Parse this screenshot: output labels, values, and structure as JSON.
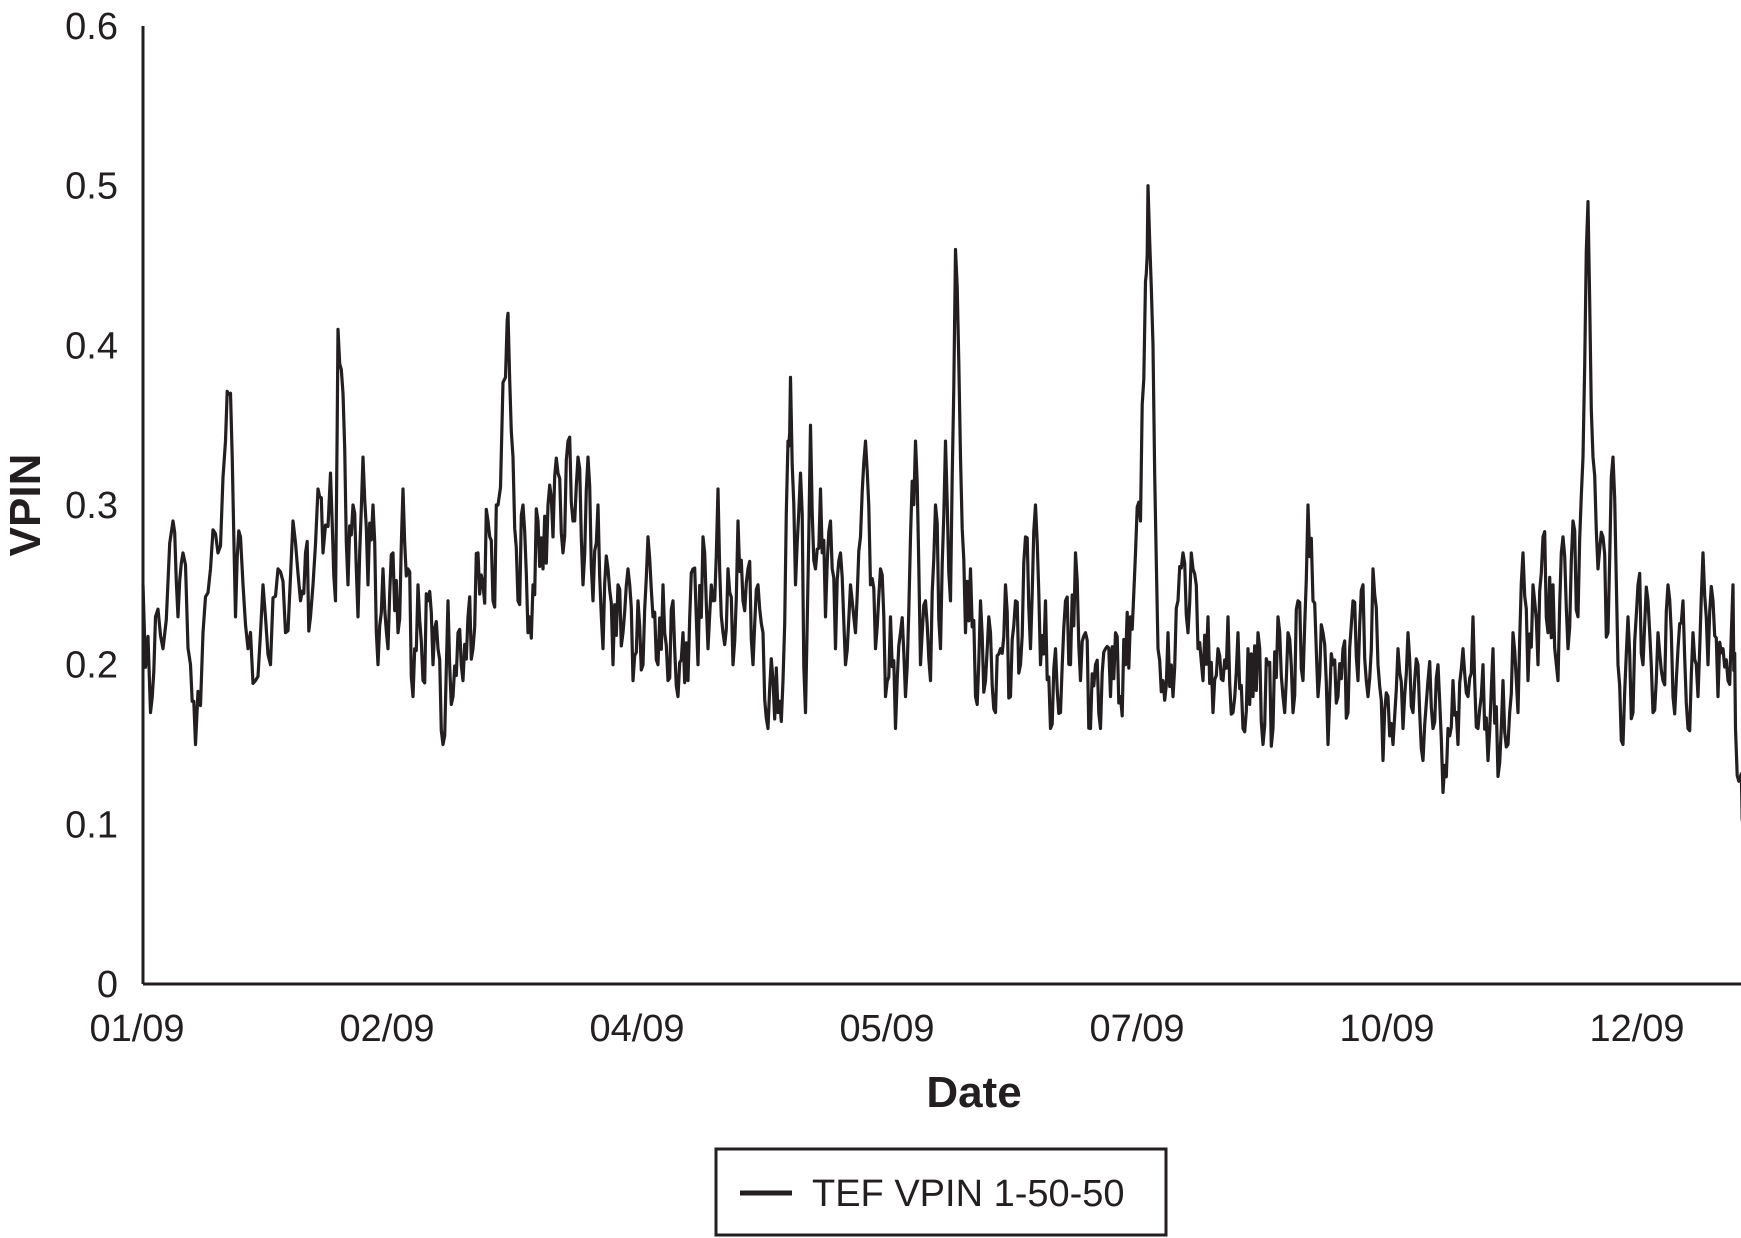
{
  "chart_data": {
    "type": "line",
    "title": "",
    "xlabel": "Date",
    "ylabel": "VPIN",
    "ylim": [
      0,
      0.6
    ],
    "yticks": [
      "0",
      "0.1",
      "0.2",
      "0.3",
      "0.4",
      "0.5",
      "0.6"
    ],
    "xticks": [
      "01/09",
      "02/09",
      "04/09",
      "05/09",
      "07/09",
      "10/09",
      "12/09"
    ],
    "grid": false,
    "legend_position": "bottom-center",
    "line_color": "#231f20",
    "series": [
      {
        "name": "TEF VPIN 1-50-50",
        "x_tick_positions": [
          0,
          1,
          2,
          3,
          4,
          5,
          6
        ],
        "x_end": 6.4,
        "peaks": [
          [
            0.0,
            0.25
          ],
          [
            0.03,
            0.17
          ],
          [
            0.05,
            0.23
          ],
          [
            0.08,
            0.21
          ],
          [
            0.12,
            0.29
          ],
          [
            0.14,
            0.23
          ],
          [
            0.16,
            0.27
          ],
          [
            0.19,
            0.2
          ],
          [
            0.21,
            0.15
          ],
          [
            0.24,
            0.22
          ],
          [
            0.27,
            0.26
          ],
          [
            0.3,
            0.27
          ],
          [
            0.33,
            0.34
          ],
          [
            0.35,
            0.37
          ],
          [
            0.37,
            0.23
          ],
          [
            0.39,
            0.28
          ],
          [
            0.42,
            0.21
          ],
          [
            0.45,
            0.19
          ],
          [
            0.48,
            0.25
          ],
          [
            0.51,
            0.2
          ],
          [
            0.54,
            0.26
          ],
          [
            0.57,
            0.22
          ],
          [
            0.6,
            0.29
          ],
          [
            0.63,
            0.24
          ],
          [
            0.65,
            0.27
          ],
          [
            0.67,
            0.23
          ],
          [
            0.7,
            0.31
          ],
          [
            0.72,
            0.27
          ],
          [
            0.75,
            0.32
          ],
          [
            0.77,
            0.24
          ],
          [
            0.78,
            0.41
          ],
          [
            0.8,
            0.37
          ],
          [
            0.82,
            0.25
          ],
          [
            0.84,
            0.3
          ],
          [
            0.86,
            0.23
          ],
          [
            0.88,
            0.33
          ],
          [
            0.9,
            0.25
          ],
          [
            0.92,
            0.3
          ],
          [
            0.94,
            0.2
          ],
          [
            0.96,
            0.26
          ],
          [
            0.98,
            0.21
          ],
          [
            1.0,
            0.27
          ],
          [
            1.02,
            0.22
          ],
          [
            1.04,
            0.31
          ],
          [
            1.06,
            0.26
          ],
          [
            1.08,
            0.18
          ],
          [
            1.1,
            0.25
          ],
          [
            1.12,
            0.19
          ],
          [
            1.14,
            0.24
          ],
          [
            1.16,
            0.2
          ],
          [
            1.18,
            0.21
          ],
          [
            1.2,
            0.15
          ],
          [
            1.22,
            0.24
          ],
          [
            1.24,
            0.18
          ],
          [
            1.26,
            0.22
          ],
          [
            1.28,
            0.19
          ],
          [
            1.3,
            0.23
          ],
          [
            1.32,
            0.21
          ],
          [
            1.34,
            0.27
          ],
          [
            1.36,
            0.25
          ],
          [
            1.38,
            0.29
          ],
          [
            1.4,
            0.24
          ],
          [
            1.42,
            0.3
          ],
          [
            1.45,
            0.38
          ],
          [
            1.46,
            0.42
          ],
          [
            1.48,
            0.33
          ],
          [
            1.5,
            0.24
          ],
          [
            1.52,
            0.3
          ],
          [
            1.54,
            0.22
          ],
          [
            1.56,
            0.25
          ],
          [
            1.58,
            0.29
          ],
          [
            1.6,
            0.26
          ],
          [
            1.62,
            0.3
          ],
          [
            1.64,
            0.28
          ],
          [
            1.66,
            0.32
          ],
          [
            1.68,
            0.27
          ],
          [
            1.7,
            0.34
          ],
          [
            1.72,
            0.29
          ],
          [
            1.74,
            0.33
          ],
          [
            1.76,
            0.25
          ],
          [
            1.78,
            0.33
          ],
          [
            1.8,
            0.24
          ],
          [
            1.82,
            0.3
          ],
          [
            1.84,
            0.21
          ],
          [
            1.86,
            0.26
          ],
          [
            1.88,
            0.2
          ],
          [
            1.9,
            0.25
          ],
          [
            1.92,
            0.22
          ],
          [
            1.94,
            0.26
          ],
          [
            1.96,
            0.19
          ],
          [
            1.98,
            0.24
          ],
          [
            2.0,
            0.2
          ],
          [
            2.02,
            0.28
          ],
          [
            2.04,
            0.23
          ],
          [
            2.06,
            0.2
          ],
          [
            2.08,
            0.25
          ],
          [
            2.1,
            0.19
          ],
          [
            2.12,
            0.24
          ],
          [
            2.14,
            0.18
          ],
          [
            2.16,
            0.22
          ],
          [
            2.18,
            0.19
          ],
          [
            2.2,
            0.26
          ],
          [
            2.22,
            0.2
          ],
          [
            2.24,
            0.28
          ],
          [
            2.26,
            0.21
          ],
          [
            2.28,
            0.24
          ],
          [
            2.3,
            0.31
          ],
          [
            2.32,
            0.22
          ],
          [
            2.34,
            0.26
          ],
          [
            2.36,
            0.2
          ],
          [
            2.38,
            0.29
          ],
          [
            2.4,
            0.24
          ],
          [
            2.42,
            0.26
          ],
          [
            2.44,
            0.2
          ],
          [
            2.46,
            0.25
          ],
          [
            2.48,
            0.22
          ],
          [
            2.5,
            0.16
          ],
          [
            2.52,
            0.19
          ],
          [
            2.54,
            0.17
          ],
          [
            2.56,
            0.19
          ],
          [
            2.58,
            0.34
          ],
          [
            2.59,
            0.38
          ],
          [
            2.61,
            0.25
          ],
          [
            2.63,
            0.32
          ],
          [
            2.65,
            0.17
          ],
          [
            2.67,
            0.35
          ],
          [
            2.69,
            0.26
          ],
          [
            2.71,
            0.31
          ],
          [
            2.73,
            0.23
          ],
          [
            2.75,
            0.29
          ],
          [
            2.77,
            0.21
          ],
          [
            2.79,
            0.27
          ],
          [
            2.81,
            0.2
          ],
          [
            2.83,
            0.25
          ],
          [
            2.85,
            0.22
          ],
          [
            2.87,
            0.28
          ],
          [
            2.89,
            0.34
          ],
          [
            2.91,
            0.25
          ],
          [
            2.93,
            0.21
          ],
          [
            2.95,
            0.26
          ],
          [
            2.97,
            0.18
          ],
          [
            2.99,
            0.23
          ],
          [
            3.01,
            0.16
          ],
          [
            3.03,
            0.22
          ],
          [
            3.05,
            0.18
          ],
          [
            3.07,
            0.28
          ],
          [
            3.09,
            0.34
          ],
          [
            3.11,
            0.2
          ],
          [
            3.13,
            0.24
          ],
          [
            3.15,
            0.19
          ],
          [
            3.17,
            0.3
          ],
          [
            3.19,
            0.21
          ],
          [
            3.21,
            0.34
          ],
          [
            3.23,
            0.24
          ],
          [
            3.25,
            0.46
          ],
          [
            3.27,
            0.33
          ],
          [
            3.29,
            0.22
          ],
          [
            3.31,
            0.26
          ],
          [
            3.33,
            0.18
          ],
          [
            3.35,
            0.24
          ],
          [
            3.37,
            0.19
          ],
          [
            3.39,
            0.22
          ],
          [
            3.41,
            0.17
          ],
          [
            3.43,
            0.21
          ],
          [
            3.45,
            0.25
          ],
          [
            3.47,
            0.18
          ],
          [
            3.49,
            0.24
          ],
          [
            3.51,
            0.2
          ],
          [
            3.53,
            0.28
          ],
          [
            3.55,
            0.21
          ],
          [
            3.57,
            0.3
          ],
          [
            3.59,
            0.2
          ],
          [
            3.61,
            0.24
          ],
          [
            3.63,
            0.16
          ],
          [
            3.65,
            0.21
          ],
          [
            3.67,
            0.17
          ],
          [
            3.69,
            0.24
          ],
          [
            3.71,
            0.2
          ],
          [
            3.73,
            0.27
          ],
          [
            3.75,
            0.19
          ],
          [
            3.77,
            0.22
          ],
          [
            3.79,
            0.16
          ],
          [
            3.81,
            0.2
          ],
          [
            3.83,
            0.16
          ],
          [
            3.85,
            0.21
          ],
          [
            3.87,
            0.18
          ],
          [
            3.89,
            0.22
          ],
          [
            3.91,
            0.18
          ],
          [
            3.93,
            0.2
          ],
          [
            3.95,
            0.23
          ],
          [
            3.97,
            0.27
          ],
          [
            3.99,
            0.29
          ],
          [
            4.01,
            0.44
          ],
          [
            4.02,
            0.5
          ],
          [
            4.04,
            0.4
          ],
          [
            4.06,
            0.21
          ],
          [
            4.08,
            0.19
          ],
          [
            4.1,
            0.22
          ],
          [
            4.12,
            0.18
          ],
          [
            4.14,
            0.24
          ],
          [
            4.16,
            0.27
          ],
          [
            4.18,
            0.22
          ],
          [
            4.2,
            0.26
          ],
          [
            4.22,
            0.21
          ],
          [
            4.24,
            0.19
          ],
          [
            4.26,
            0.23
          ],
          [
            4.28,
            0.17
          ],
          [
            4.3,
            0.21
          ],
          [
            4.32,
            0.19
          ],
          [
            4.34,
            0.23
          ],
          [
            4.36,
            0.17
          ],
          [
            4.38,
            0.22
          ],
          [
            4.4,
            0.16
          ],
          [
            4.42,
            0.21
          ],
          [
            4.44,
            0.18
          ],
          [
            4.46,
            0.22
          ],
          [
            4.48,
            0.15
          ],
          [
            4.5,
            0.2
          ],
          [
            4.52,
            0.16
          ],
          [
            4.54,
            0.23
          ],
          [
            4.56,
            0.18
          ],
          [
            4.58,
            0.22
          ],
          [
            4.6,
            0.17
          ],
          [
            4.62,
            0.24
          ],
          [
            4.64,
            0.19
          ],
          [
            4.66,
            0.3
          ],
          [
            4.68,
            0.24
          ],
          [
            4.7,
            0.18
          ],
          [
            4.72,
            0.22
          ],
          [
            4.74,
            0.15
          ],
          [
            4.76,
            0.2
          ],
          [
            4.78,
            0.18
          ],
          [
            4.8,
            0.21
          ],
          [
            4.82,
            0.17
          ],
          [
            4.84,
            0.24
          ],
          [
            4.86,
            0.19
          ],
          [
            4.88,
            0.25
          ],
          [
            4.9,
            0.18
          ],
          [
            4.92,
            0.26
          ],
          [
            4.94,
            0.2
          ],
          [
            4.96,
            0.14
          ],
          [
            4.98,
            0.18
          ],
          [
            5.0,
            0.15
          ],
          [
            5.02,
            0.21
          ],
          [
            5.04,
            0.16
          ],
          [
            5.06,
            0.22
          ],
          [
            5.08,
            0.17
          ],
          [
            5.1,
            0.2
          ],
          [
            5.12,
            0.14
          ],
          [
            5.14,
            0.19
          ],
          [
            5.16,
            0.16
          ],
          [
            5.18,
            0.2
          ],
          [
            5.2,
            0.12
          ],
          [
            5.22,
            0.16
          ],
          [
            5.24,
            0.19
          ],
          [
            5.26,
            0.15
          ],
          [
            5.28,
            0.21
          ],
          [
            5.3,
            0.18
          ],
          [
            5.32,
            0.23
          ],
          [
            5.34,
            0.16
          ],
          [
            5.36,
            0.2
          ],
          [
            5.38,
            0.14
          ],
          [
            5.4,
            0.21
          ],
          [
            5.42,
            0.13
          ],
          [
            5.44,
            0.19
          ],
          [
            5.46,
            0.15
          ],
          [
            5.48,
            0.22
          ],
          [
            5.5,
            0.17
          ],
          [
            5.52,
            0.27
          ],
          [
            5.54,
            0.19
          ],
          [
            5.56,
            0.25
          ],
          [
            5.58,
            0.2
          ],
          [
            5.6,
            0.28
          ],
          [
            5.62,
            0.22
          ],
          [
            5.64,
            0.25
          ],
          [
            5.66,
            0.19
          ],
          [
            5.68,
            0.28
          ],
          [
            5.7,
            0.21
          ],
          [
            5.72,
            0.29
          ],
          [
            5.74,
            0.23
          ],
          [
            5.76,
            0.33
          ],
          [
            5.78,
            0.49
          ],
          [
            5.8,
            0.33
          ],
          [
            5.82,
            0.26
          ],
          [
            5.84,
            0.28
          ],
          [
            5.86,
            0.22
          ],
          [
            5.88,
            0.33
          ],
          [
            5.9,
            0.2
          ],
          [
            5.92,
            0.15
          ],
          [
            5.94,
            0.23
          ],
          [
            5.96,
            0.17
          ],
          [
            5.98,
            0.25
          ],
          [
            6.0,
            0.2
          ],
          [
            6.02,
            0.24
          ],
          [
            6.04,
            0.17
          ],
          [
            6.06,
            0.22
          ],
          [
            6.08,
            0.19
          ],
          [
            6.1,
            0.25
          ],
          [
            6.12,
            0.18
          ],
          [
            6.14,
            0.21
          ],
          [
            6.16,
            0.24
          ],
          [
            6.18,
            0.16
          ],
          [
            6.2,
            0.22
          ],
          [
            6.22,
            0.18
          ],
          [
            6.24,
            0.27
          ],
          [
            6.26,
            0.2
          ],
          [
            6.28,
            0.24
          ],
          [
            6.3,
            0.18
          ],
          [
            6.32,
            0.21
          ],
          [
            6.34,
            0.19
          ],
          [
            6.36,
            0.25
          ],
          [
            6.37,
            0.16
          ],
          [
            6.39,
            0.13
          ],
          [
            6.4,
            0.11
          ]
        ]
      }
    ]
  }
}
